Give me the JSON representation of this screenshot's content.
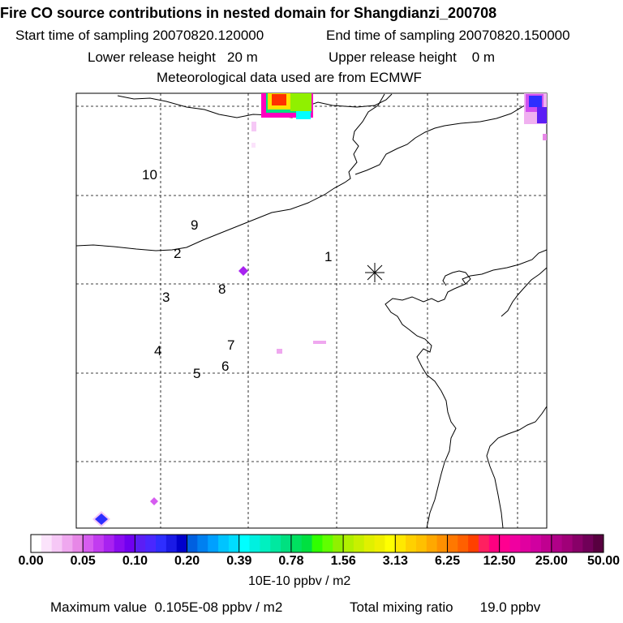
{
  "header": {
    "title": "Fire CO source contributions in nested domain for Shangdianzi_200708",
    "start_label": "Start time of sampling 20070820.120000",
    "end_label": "End time of sampling 20070820.150000",
    "lower_release": "Lower release height   20 m",
    "upper_release": "Upper release height    0 m",
    "met_data": "Meteorological data used are from ECMWF"
  },
  "map": {
    "station_marker": "star-marker",
    "labels": [
      "1",
      "2",
      "3",
      "4",
      "5",
      "6",
      "7",
      "8",
      "9",
      "10"
    ]
  },
  "colorbar": {
    "ticks": [
      "0.00",
      "0.05",
      "0.10",
      "0.20",
      "0.39",
      "0.78",
      "1.56",
      "3.13",
      "6.25",
      "12.50",
      "25.00",
      "50.00"
    ],
    "colors": [
      "#ffffff",
      "#fbe3fb",
      "#f6c8f6",
      "#efa8ef",
      "#e787e7",
      "#d65cf0",
      "#c23cf0",
      "#a822f0",
      "#8a0cf0",
      "#7000f0",
      "#5b1ef5",
      "#4a27ff",
      "#2e2eff",
      "#1a1ae6",
      "#0000cc",
      "#0060e0",
      "#0080f0",
      "#00a0ff",
      "#00c4ff",
      "#00dcff",
      "#00ffff",
      "#00f0e0",
      "#00f0c0",
      "#00e8a0",
      "#00e080",
      "#00e060",
      "#00e040",
      "#30ff00",
      "#60ff00",
      "#90f000",
      "#b0f000",
      "#c8f000",
      "#e0f000",
      "#f0f000",
      "#ffff00",
      "#ffe800",
      "#ffd000",
      "#ffc000",
      "#ffa800",
      "#ff9000",
      "#ff7800",
      "#ff6000",
      "#ff4000",
      "#ff2060",
      "#ff0080",
      "#ff0090",
      "#f000a0",
      "#e000a0",
      "#d000a0",
      "#c00090",
      "#b00088",
      "#a00078",
      "#880068",
      "#700058",
      "#580040"
    ],
    "unit": "10E-10 ppbv / m2"
  },
  "footer": {
    "max_value": "Maximum value  0.105E-08 ppbv / m2",
    "total_mixing": "Total mixing ratio       19.0 ppbv"
  }
}
